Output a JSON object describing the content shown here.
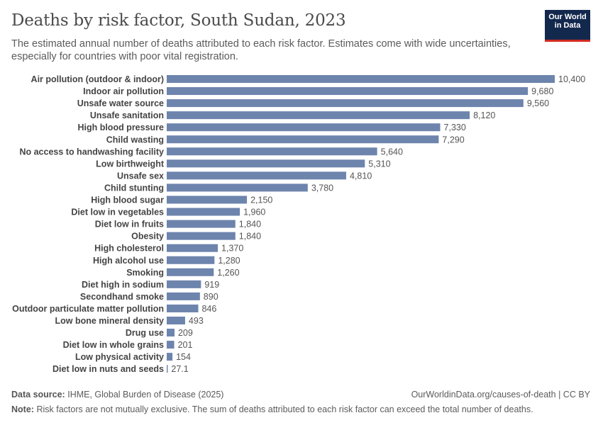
{
  "header": {
    "title": "Deaths by risk factor, South Sudan, 2023",
    "subtitle": "The estimated annual number of deaths attributed to each risk factor. Estimates come with wide uncertainties, especially for countries with poor vital registration.",
    "logo_line1": "Our World",
    "logo_line2": "in Data"
  },
  "footer": {
    "source_label": "Data source:",
    "source_text": "IHME, Global Burden of Disease (2025)",
    "url_text": "OurWorldinData.org/causes-of-death | CC BY",
    "note_label": "Note:",
    "note_text": "Risk factors are not mutually exclusive. The sum of deaths attributed to each risk factor can exceed the total number of deaths."
  },
  "colors": {
    "bar": "#6d84ad",
    "logo_bg": "#13284d",
    "logo_accent": "#d42b21"
  },
  "chart_data": {
    "type": "bar",
    "orientation": "horizontal",
    "title": "Deaths by risk factor, South Sudan, 2023",
    "xlabel": "",
    "ylabel": "",
    "xlim": [
      0,
      10400
    ],
    "categories": [
      "Air pollution (outdoor & indoor)",
      "Indoor air pollution",
      "Unsafe water source",
      "Unsafe sanitation",
      "High blood pressure",
      "Child wasting",
      "No access to handwashing facility",
      "Low birthweight",
      "Unsafe sex",
      "Child stunting",
      "High blood sugar",
      "Diet low in vegetables",
      "Diet low in fruits",
      "Obesity",
      "High cholesterol",
      "High alcohol use",
      "Smoking",
      "Diet high in sodium",
      "Secondhand smoke",
      "Outdoor particulate matter pollution",
      "Low bone mineral density",
      "Drug use",
      "Diet low in whole grains",
      "Low physical activity",
      "Diet low in nuts and seeds"
    ],
    "values": [
      10400,
      9680,
      9560,
      8120,
      7330,
      7290,
      5640,
      5310,
      4810,
      3780,
      2150,
      1960,
      1840,
      1840,
      1370,
      1280,
      1260,
      919,
      890,
      846,
      493,
      209,
      201,
      154,
      27.1
    ],
    "labels": [
      "10,400",
      "9,680",
      "9,560",
      "8,120",
      "7,330",
      "7,290",
      "5,640",
      "5,310",
      "4,810",
      "3,780",
      "2,150",
      "1,960",
      "1,840",
      "1,840",
      "1,370",
      "1,280",
      "1,260",
      "919",
      "890",
      "846",
      "493",
      "209",
      "201",
      "154",
      "27.1"
    ]
  }
}
